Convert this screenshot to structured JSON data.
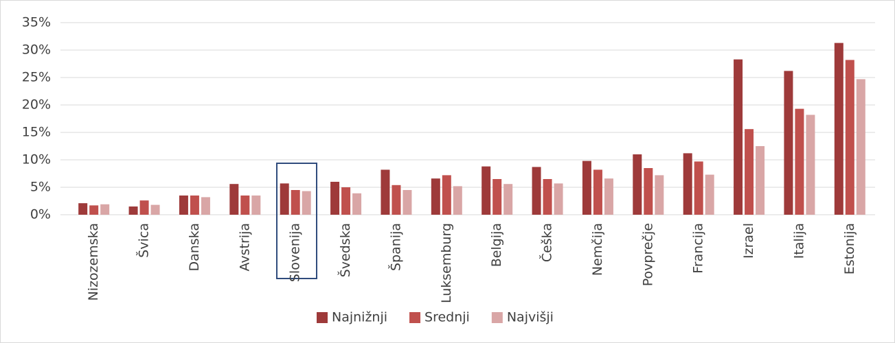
{
  "chart_data": {
    "type": "bar",
    "categories": [
      "Nizozemska",
      "Švica",
      "Danska",
      "Avstrija",
      "Slovenija",
      "Švedska",
      "Španija",
      "Luksemburg",
      "Belgija",
      "Češka",
      "Nemčija",
      "Povprečje",
      "Francija",
      "Izrael",
      "Italija",
      "Estonija"
    ],
    "series": [
      {
        "name": "Najnižnji",
        "color": "#9e3a3a",
        "values": [
          2.1,
          1.5,
          3.5,
          5.6,
          5.7,
          6.0,
          8.2,
          6.6,
          8.8,
          8.7,
          9.8,
          11.0,
          11.2,
          28.3,
          26.2,
          31.3
        ]
      },
      {
        "name": "Srednji",
        "color": "#c0504d",
        "values": [
          1.7,
          2.6,
          3.5,
          3.5,
          4.5,
          5.0,
          5.4,
          7.2,
          6.5,
          6.5,
          8.2,
          8.5,
          9.7,
          15.6,
          19.3,
          28.2
        ]
      },
      {
        "name": "Najvišji",
        "color": "#d9a6a6",
        "values": [
          1.9,
          1.8,
          3.2,
          3.5,
          4.3,
          3.9,
          4.5,
          5.2,
          5.6,
          5.7,
          6.6,
          7.2,
          7.3,
          12.5,
          18.2,
          24.7
        ]
      }
    ],
    "ylim": [
      0,
      35
    ],
    "yticks": [
      {
        "value": 0,
        "label": "0%"
      },
      {
        "value": 5,
        "label": "5%"
      },
      {
        "value": 10,
        "label": "10%"
      },
      {
        "value": 15,
        "label": "15%"
      },
      {
        "value": 20,
        "label": "20%"
      },
      {
        "value": 25,
        "label": "25%"
      },
      {
        "value": 30,
        "label": "30%"
      },
      {
        "value": 35,
        "label": "35%"
      }
    ],
    "grid": true,
    "legend": "bottom"
  }
}
